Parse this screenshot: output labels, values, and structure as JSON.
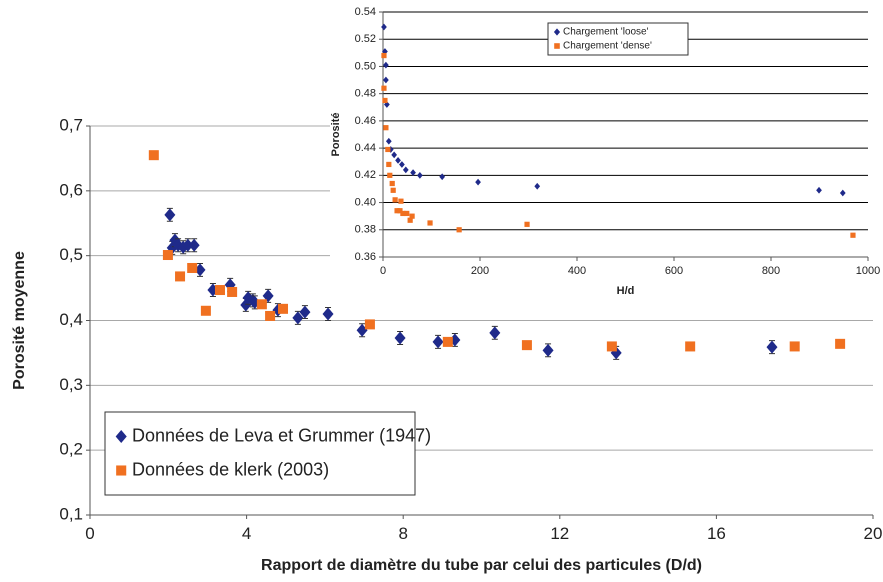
{
  "chart_data": [
    {
      "type": "scatter",
      "xlabel": "Rapport  de diamètre du tube par celui des particules  (D/d)",
      "ylabel": "Porosité moyenne",
      "xlim": [
        0,
        20
      ],
      "xticks": [
        0,
        4,
        8,
        12,
        16,
        20
      ],
      "ylim": [
        0.1,
        0.7
      ],
      "yticks": [
        {
          "value": 0.1,
          "label": "0,1"
        },
        {
          "value": 0.2,
          "label": "0,2"
        },
        {
          "value": 0.3,
          "label": "0,3"
        },
        {
          "value": 0.4,
          "label": "0,4"
        },
        {
          "value": 0.5,
          "label": "0,5"
        },
        {
          "value": 0.6,
          "label": "0,6"
        },
        {
          "value": 0.7,
          "label": "0,7"
        }
      ],
      "grid": true,
      "series": [
        {
          "name": "Données de Leva et Grummer (1947)",
          "color": "#1f2a8a",
          "marker": "diamond",
          "x": [
            2.04,
            2.1,
            2.17,
            2.25,
            2.38,
            2.5,
            2.66,
            2.81,
            3.14,
            3.58,
            3.98,
            4.04,
            4.16,
            4.21,
            4.55,
            4.8,
            5.31,
            5.49,
            6.08,
            6.95,
            7.92,
            8.89,
            9.32,
            10.34,
            11.7,
            13.44,
            17.42
          ],
          "values": [
            0.563,
            0.512,
            0.524,
            0.516,
            0.513,
            0.516,
            0.516,
            0.478,
            0.447,
            0.455,
            0.424,
            0.435,
            0.431,
            0.428,
            0.438,
            0.416,
            0.404,
            0.413,
            0.41,
            0.385,
            0.373,
            0.367,
            0.37,
            0.381,
            0.354,
            0.35,
            0.359
          ],
          "errors": [
            0.01,
            0.01,
            0.01,
            0.01,
            0.01,
            0.01,
            0.01,
            0.01,
            0.01,
            0.01,
            0.01,
            0.01,
            0.01,
            0.01,
            0.01,
            0.01,
            0.01,
            0.01,
            0.01,
            0.01,
            0.01,
            0.01,
            0.01,
            0.01,
            0.01,
            0.01,
            0.01
          ]
        },
        {
          "name": "Données de klerk (2003)",
          "color": "#f07020",
          "marker": "square",
          "x": [
            1.63,
            1.99,
            2.3,
            2.61,
            2.96,
            3.32,
            3.63,
            4.39,
            4.6,
            4.93,
            7.15,
            9.14,
            11.16,
            13.33,
            15.33,
            18.0,
            19.16
          ],
          "values": [
            0.655,
            0.501,
            0.468,
            0.481,
            0.415,
            0.447,
            0.444,
            0.425,
            0.407,
            0.418,
            0.394,
            0.367,
            0.362,
            0.36,
            0.36,
            0.36,
            0.364
          ]
        }
      ]
    },
    {
      "type": "scatter",
      "xlabel": "H/d",
      "ylabel": "Porosité",
      "xlim": [
        0,
        1000
      ],
      "xticks": [
        0,
        200,
        400,
        600,
        800,
        1000
      ],
      "ylim": [
        0.36,
        0.54
      ],
      "yticks": [
        0.36,
        0.38,
        {
          "value": 0.4,
          "label": "0.40"
        },
        0.42,
        0.44,
        0.46,
        0.48,
        {
          "value": 0.5,
          "label": "0.50"
        },
        0.52,
        0.54
      ],
      "grid": true,
      "series": [
        {
          "name": "Chargement 'loose'",
          "color": "#1f2a8a",
          "marker": "diamond",
          "x": [
            2,
            4,
            6,
            6,
            8,
            12,
            16,
            23,
            31,
            39,
            47,
            62,
            76,
            122,
            196,
            318,
            899,
            948
          ],
          "values": [
            0.529,
            0.511,
            0.501,
            0.49,
            0.472,
            0.445,
            0.439,
            0.435,
            0.431,
            0.428,
            0.424,
            0.422,
            0.42,
            0.419,
            0.415,
            0.412,
            0.409,
            0.407
          ]
        },
        {
          "name": "Chargement 'dense'",
          "color": "#f07020",
          "marker": "square",
          "x": [
            2,
            2,
            4,
            6,
            10,
            12,
            14,
            19,
            21,
            25,
            29,
            35,
            37,
            41,
            49,
            56,
            60,
            97,
            157,
            297,
            969
          ],
          "values": [
            0.508,
            0.484,
            0.475,
            0.455,
            0.439,
            0.428,
            0.42,
            0.414,
            0.409,
            0.402,
            0.394,
            0.394,
            0.401,
            0.392,
            0.392,
            0.387,
            0.39,
            0.385,
            0.38,
            0.384,
            0.376
          ]
        }
      ]
    }
  ]
}
